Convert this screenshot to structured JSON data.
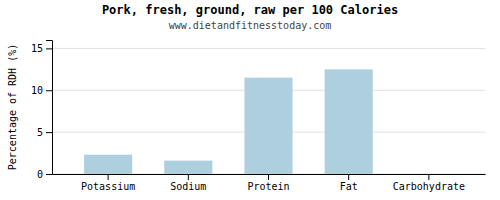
{
  "chart_data": {
    "type": "bar",
    "title": "Pork, fresh, ground, raw per 100 Calories",
    "subtitle": "www.dietandfitnesstoday.com",
    "categories": [
      "Potassium",
      "Sodium",
      "Protein",
      "Fat",
      "Carbohydrate"
    ],
    "values": [
      2.3,
      1.6,
      11.5,
      12.5,
      0.0
    ],
    "color": "#aecfdd",
    "ylabel": "Percentage of RDH (%)",
    "ylim": [
      0,
      16
    ],
    "yticks": [
      0,
      5,
      10,
      15
    ],
    "grid": true
  }
}
